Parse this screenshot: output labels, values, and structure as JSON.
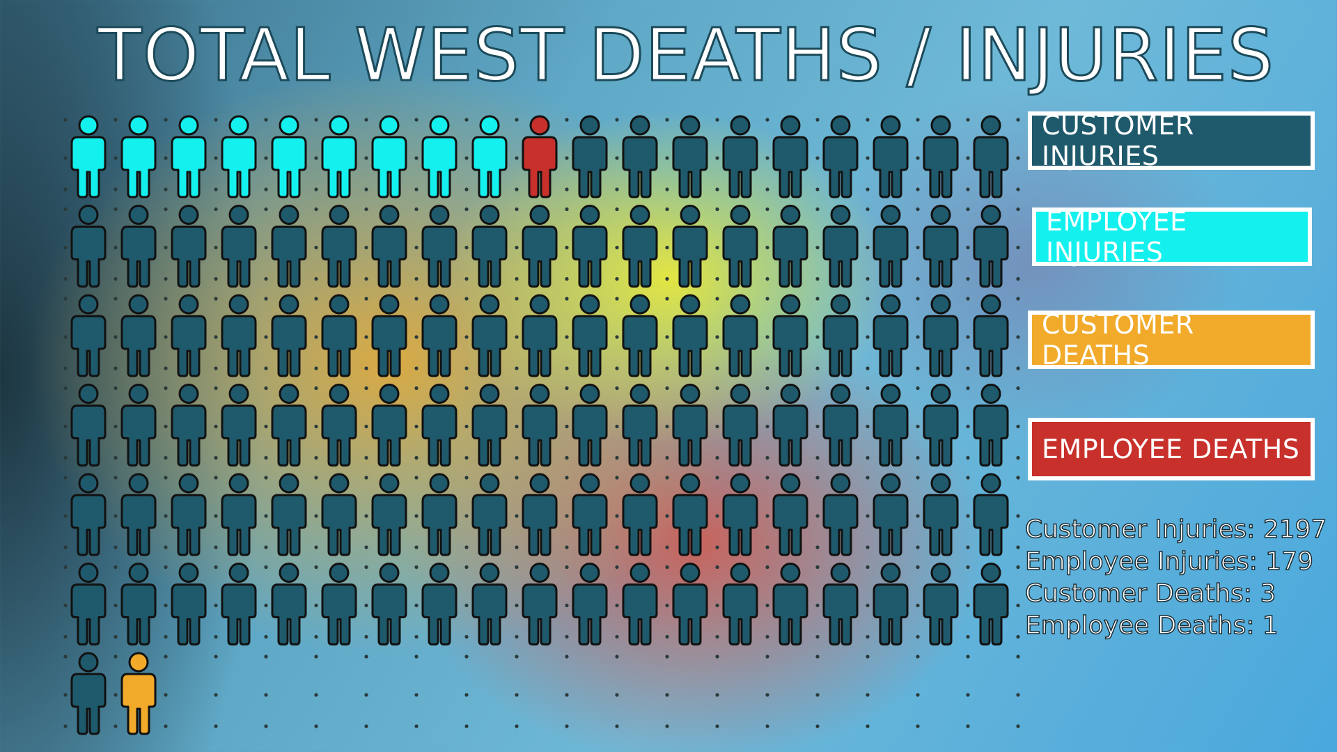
{
  "title": "TOTAL WEST DEATHS / INJURIES",
  "colors": {
    "customer_injury": "#1f5a6c",
    "employee_injury": "#14f0ee",
    "customer_death": "#f1aa2a",
    "employee_death": "#c8302b",
    "outline": "#111111"
  },
  "legend": [
    {
      "label": "CUSTOMER INJURIES",
      "color": "#1f5a6c"
    },
    {
      "label": "EMPLOYEE INJURIES",
      "color": "#14f0ee"
    },
    {
      "label": "CUSTOMER DEATHS",
      "color": "#f1aa2a"
    },
    {
      "label": "EMPLOYEE DEATHS",
      "color": "#c8302b"
    }
  ],
  "stats": [
    "Customer Injuries: 2197",
    "Employee Injuries: 179",
    "Customer Deaths: 3",
    "Employee Deaths: 1"
  ],
  "icon_rows": [
    [
      "employee_injury",
      "employee_injury",
      "employee_injury",
      "employee_injury",
      "employee_injury",
      "employee_injury",
      "employee_injury",
      "employee_injury",
      "employee_injury",
      "employee_death",
      "customer_injury",
      "customer_injury",
      "customer_injury",
      "customer_injury",
      "customer_injury",
      "customer_injury",
      "customer_injury",
      "customer_injury",
      "customer_injury"
    ],
    [
      "customer_injury",
      "customer_injury",
      "customer_injury",
      "customer_injury",
      "customer_injury",
      "customer_injury",
      "customer_injury",
      "customer_injury",
      "customer_injury",
      "customer_injury",
      "customer_injury",
      "customer_injury",
      "customer_injury",
      "customer_injury",
      "customer_injury",
      "customer_injury",
      "customer_injury",
      "customer_injury",
      "customer_injury"
    ],
    [
      "customer_injury",
      "customer_injury",
      "customer_injury",
      "customer_injury",
      "customer_injury",
      "customer_injury",
      "customer_injury",
      "customer_injury",
      "customer_injury",
      "customer_injury",
      "customer_injury",
      "customer_injury",
      "customer_injury",
      "customer_injury",
      "customer_injury",
      "customer_injury",
      "customer_injury",
      "customer_injury",
      "customer_injury"
    ],
    [
      "customer_injury",
      "customer_injury",
      "customer_injury",
      "customer_injury",
      "customer_injury",
      "customer_injury",
      "customer_injury",
      "customer_injury",
      "customer_injury",
      "customer_injury",
      "customer_injury",
      "customer_injury",
      "customer_injury",
      "customer_injury",
      "customer_injury",
      "customer_injury",
      "customer_injury",
      "customer_injury",
      "customer_injury"
    ],
    [
      "customer_injury",
      "customer_injury",
      "customer_injury",
      "customer_injury",
      "customer_injury",
      "customer_injury",
      "customer_injury",
      "customer_injury",
      "customer_injury",
      "customer_injury",
      "customer_injury",
      "customer_injury",
      "customer_injury",
      "customer_injury",
      "customer_injury",
      "customer_injury",
      "customer_injury",
      "customer_injury",
      "customer_injury"
    ],
    [
      "customer_injury",
      "customer_injury",
      "customer_injury",
      "customer_injury",
      "customer_injury",
      "customer_injury",
      "customer_injury",
      "customer_injury",
      "customer_injury",
      "customer_injury",
      "customer_injury",
      "customer_injury",
      "customer_injury",
      "customer_injury",
      "customer_injury",
      "customer_injury",
      "customer_injury",
      "customer_injury",
      "customer_injury"
    ],
    [
      "customer_injury",
      "customer_death"
    ]
  ]
}
